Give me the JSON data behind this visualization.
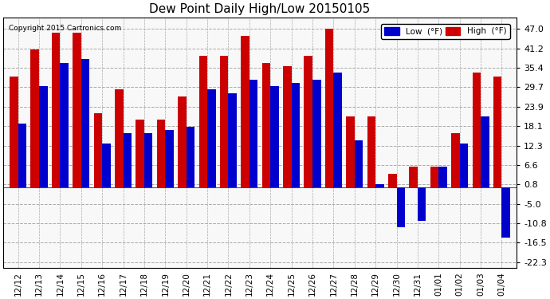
{
  "title": "Dew Point Daily High/Low 20150105",
  "copyright": "Copyright 2015 Cartronics.com",
  "background_color": "#ffffff",
  "plot_bg_color": "#f8f8f8",
  "grid_color": "#aaaaaa",
  "dates": [
    "12/12",
    "12/13",
    "12/14",
    "12/15",
    "12/16",
    "12/17",
    "12/18",
    "12/19",
    "12/20",
    "12/21",
    "12/22",
    "12/23",
    "12/24",
    "12/25",
    "12/26",
    "12/27",
    "12/28",
    "12/29",
    "12/30",
    "12/31",
    "01/01",
    "01/02",
    "01/03",
    "01/04"
  ],
  "high": [
    33.0,
    41.0,
    46.0,
    46.0,
    22.0,
    29.0,
    20.0,
    20.0,
    27.0,
    39.0,
    39.0,
    45.0,
    37.0,
    36.0,
    39.0,
    47.0,
    21.0,
    21.0,
    4.0,
    6.0,
    6.0,
    16.0,
    34.0,
    33.0
  ],
  "low": [
    19.0,
    30.0,
    37.0,
    38.0,
    13.0,
    16.0,
    16.0,
    17.0,
    18.0,
    29.0,
    28.0,
    32.0,
    30.0,
    31.0,
    32.0,
    34.0,
    14.0,
    1.0,
    -12.0,
    -10.0,
    6.0,
    13.0,
    21.0,
    -15.0
  ],
  "high_color": "#cc0000",
  "low_color": "#0000cc",
  "yticks": [
    47.0,
    41.2,
    35.4,
    29.7,
    23.9,
    18.1,
    12.3,
    6.6,
    0.8,
    -5.0,
    -10.8,
    -16.5,
    -22.3
  ],
  "ylim": [
    -24.0,
    50.5
  ],
  "bar_width": 0.4,
  "figwidth": 6.9,
  "figheight": 3.75,
  "dpi": 100
}
